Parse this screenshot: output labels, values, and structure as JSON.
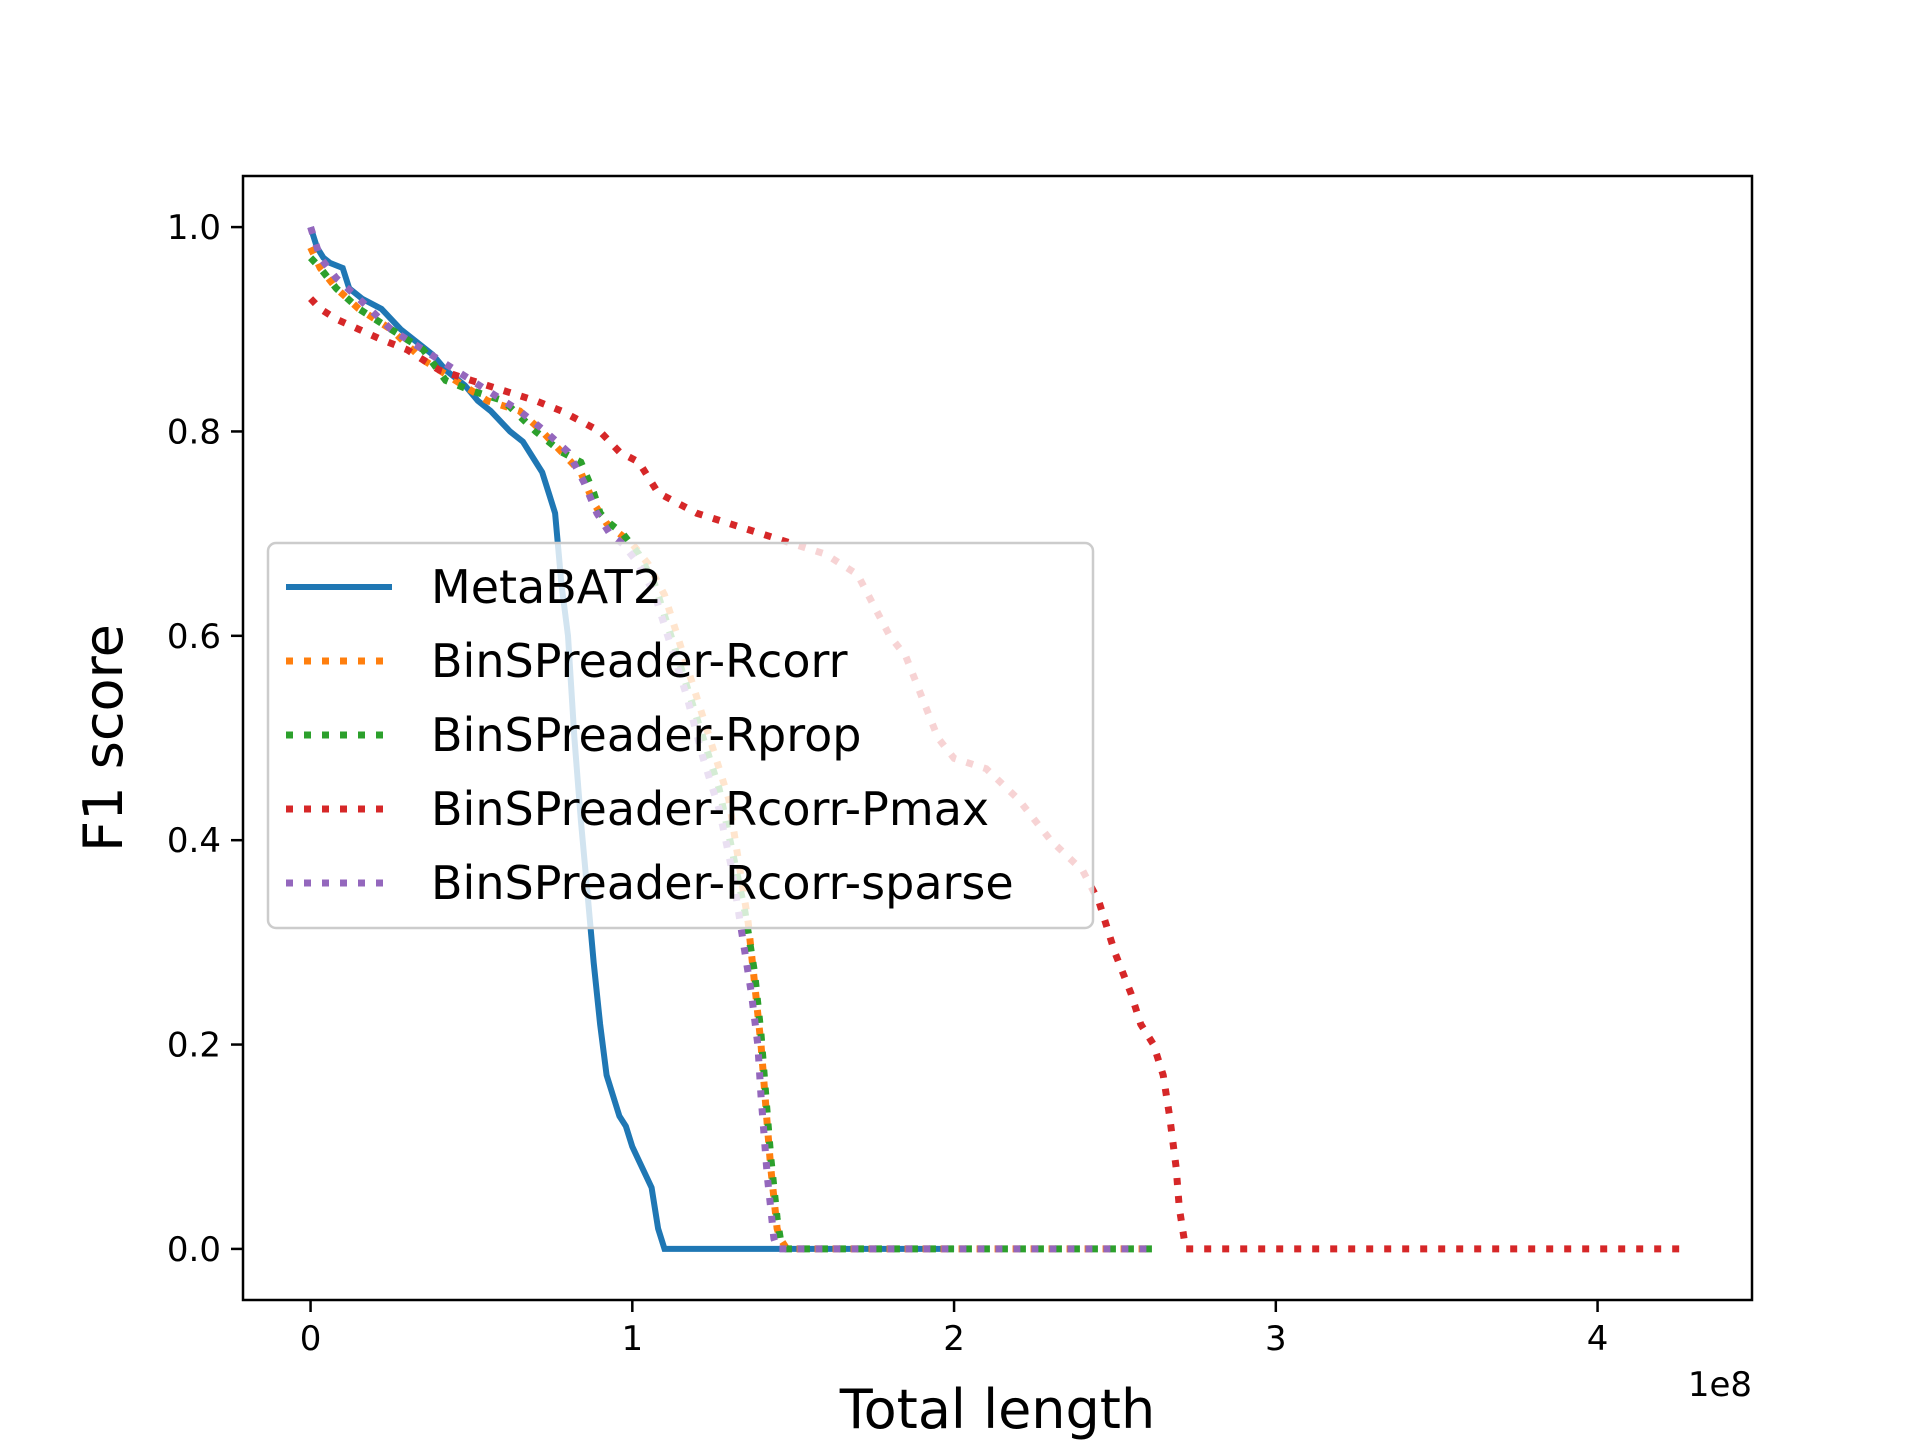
{
  "chart_data": {
    "type": "line",
    "title": "",
    "xlabel": "Total length",
    "ylabel": "F1 score",
    "x_offset_label": "1e8",
    "xlim": [
      -0.21,
      4.48
    ],
    "ylim": [
      -0.05,
      1.05
    ],
    "xticks": [
      0,
      1,
      2,
      3,
      4
    ],
    "xtick_labels": [
      "0",
      "1",
      "2",
      "3",
      "4"
    ],
    "yticks": [
      0.0,
      0.2,
      0.4,
      0.6,
      0.8,
      1.0
    ],
    "ytick_labels": [
      "0.0",
      "0.2",
      "0.4",
      "0.6",
      "0.8",
      "1.0"
    ],
    "grid": false,
    "legend_position": "center-left",
    "series": [
      {
        "name": "MetaBAT2",
        "color": "#1f77b4",
        "style": "solid",
        "x": [
          0.0,
          0.02,
          0.04,
          0.06,
          0.1,
          0.12,
          0.16,
          0.22,
          0.28,
          0.34,
          0.38,
          0.42,
          0.48,
          0.52,
          0.56,
          0.62,
          0.66,
          0.7,
          0.72,
          0.74,
          0.76,
          0.78,
          0.8,
          0.81,
          0.82,
          0.84,
          0.86,
          0.88,
          0.9,
          0.92,
          0.94,
          0.96,
          0.98,
          1.0,
          1.06,
          1.08,
          1.1,
          1.1,
          1.12,
          1.15,
          1.18,
          1.2,
          1.23,
          1.26,
          1.28,
          1.32,
          1.37,
          1.39,
          1.42,
          1.45,
          1.5,
          1.6,
          1.8,
          2.0
        ],
        "y": [
          1.0,
          0.98,
          0.97,
          0.965,
          0.96,
          0.94,
          0.93,
          0.92,
          0.9,
          0.885,
          0.875,
          0.86,
          0.845,
          0.83,
          0.82,
          0.8,
          0.79,
          0.77,
          0.76,
          0.74,
          0.72,
          0.65,
          0.6,
          0.55,
          0.5,
          0.42,
          0.35,
          0.28,
          0.22,
          0.17,
          0.15,
          0.13,
          0.12,
          0.1,
          0.06,
          0.02,
          0.0,
          0.0,
          0.0,
          0.0,
          0.0,
          0.0,
          0.0,
          0.0,
          0.0,
          0.0,
          0.0,
          0.0,
          0.0,
          0.0,
          0.0,
          0.0,
          0.0,
          0.0
        ]
      },
      {
        "name": "BinSPreader-Rcorr",
        "color": "#ff7f0e",
        "style": "dotted",
        "x": [
          0.0,
          0.03,
          0.08,
          0.15,
          0.25,
          0.35,
          0.45,
          0.55,
          0.65,
          0.72,
          0.78,
          0.84,
          0.88,
          0.92,
          0.96,
          1.0,
          1.05,
          1.1,
          1.15,
          1.2,
          1.25,
          1.3,
          1.33,
          1.36,
          1.38,
          1.4,
          1.41,
          1.42,
          1.43,
          1.44,
          1.45,
          1.46,
          1.48,
          1.5,
          1.6,
          1.8,
          2.0,
          2.2,
          2.4,
          2.6
        ],
        "y": [
          0.98,
          0.96,
          0.94,
          0.92,
          0.9,
          0.87,
          0.85,
          0.83,
          0.82,
          0.8,
          0.78,
          0.76,
          0.73,
          0.71,
          0.7,
          0.69,
          0.67,
          0.64,
          0.59,
          0.54,
          0.49,
          0.44,
          0.38,
          0.32,
          0.26,
          0.2,
          0.16,
          0.12,
          0.08,
          0.05,
          0.02,
          0.01,
          0.0,
          0.0,
          0.0,
          0.0,
          0.0,
          0.0,
          0.0,
          0.0
        ]
      },
      {
        "name": "BinSPreader-Rprop",
        "color": "#2ca02c",
        "style": "dotted",
        "x": [
          0.0,
          0.03,
          0.08,
          0.15,
          0.25,
          0.35,
          0.42,
          0.5,
          0.6,
          0.7,
          0.78,
          0.84,
          0.88,
          0.9,
          0.93,
          0.97,
          1.02,
          1.07,
          1.12,
          1.17,
          1.22,
          1.27,
          1.31,
          1.35,
          1.38,
          1.4,
          1.41,
          1.42,
          1.43,
          1.44,
          1.45,
          1.46,
          1.48,
          1.5,
          1.7,
          1.9,
          2.1,
          2.3,
          2.5,
          2.62
        ],
        "y": [
          0.97,
          0.96,
          0.94,
          0.92,
          0.9,
          0.88,
          0.85,
          0.84,
          0.83,
          0.8,
          0.78,
          0.77,
          0.74,
          0.72,
          0.71,
          0.7,
          0.68,
          0.65,
          0.6,
          0.55,
          0.5,
          0.45,
          0.39,
          0.33,
          0.27,
          0.21,
          0.17,
          0.13,
          0.09,
          0.06,
          0.03,
          0.01,
          0.0,
          0.0,
          0.0,
          0.0,
          0.0,
          0.0,
          0.0,
          0.0
        ]
      },
      {
        "name": "BinSPreader-Rcorr-Pmax",
        "color": "#d62728",
        "style": "dotted",
        "x": [
          0.0,
          0.03,
          0.08,
          0.15,
          0.22,
          0.3,
          0.4,
          0.5,
          0.6,
          0.7,
          0.78,
          0.84,
          0.9,
          0.96,
          1.02,
          1.08,
          1.14,
          1.2,
          1.3,
          1.4,
          1.5,
          1.6,
          1.7,
          1.75,
          1.8,
          1.85,
          1.9,
          1.95,
          2.0,
          2.1,
          2.2,
          2.3,
          2.4,
          2.45,
          2.5,
          2.55,
          2.58,
          2.62,
          2.65,
          2.67,
          2.69,
          2.7,
          2.72,
          2.8,
          3.0,
          3.2,
          3.4,
          3.6,
          3.8,
          4.0,
          4.2,
          4.27
        ],
        "y": [
          0.93,
          0.92,
          0.91,
          0.9,
          0.89,
          0.88,
          0.86,
          0.85,
          0.84,
          0.83,
          0.82,
          0.81,
          0.8,
          0.78,
          0.77,
          0.74,
          0.73,
          0.72,
          0.71,
          0.7,
          0.69,
          0.68,
          0.66,
          0.63,
          0.6,
          0.58,
          0.54,
          0.5,
          0.48,
          0.47,
          0.44,
          0.4,
          0.37,
          0.34,
          0.29,
          0.25,
          0.22,
          0.2,
          0.17,
          0.13,
          0.08,
          0.04,
          0.0,
          0.0,
          0.0,
          0.0,
          0.0,
          0.0,
          0.0,
          0.0,
          0.0,
          0.0
        ]
      },
      {
        "name": "BinSPreader-Rcorr-sparse",
        "color": "#9467bd",
        "style": "dotted",
        "x": [
          0.0,
          0.03,
          0.08,
          0.15,
          0.25,
          0.35,
          0.45,
          0.55,
          0.65,
          0.73,
          0.8,
          0.85,
          0.89,
          0.93,
          0.97,
          1.02,
          1.07,
          1.12,
          1.17,
          1.22,
          1.27,
          1.31,
          1.34,
          1.37,
          1.39,
          1.4,
          1.41,
          1.42,
          1.43,
          1.44,
          1.45,
          1.5,
          1.7,
          1.9,
          2.1,
          2.3,
          2.5,
          2.6
        ],
        "y": [
          1.0,
          0.97,
          0.95,
          0.93,
          0.9,
          0.88,
          0.86,
          0.84,
          0.82,
          0.8,
          0.78,
          0.75,
          0.72,
          0.7,
          0.69,
          0.67,
          0.64,
          0.59,
          0.54,
          0.48,
          0.43,
          0.37,
          0.31,
          0.25,
          0.2,
          0.15,
          0.11,
          0.07,
          0.04,
          0.01,
          0.0,
          0.0,
          0.0,
          0.0,
          0.0,
          0.0,
          0.0,
          0.0
        ]
      }
    ]
  }
}
